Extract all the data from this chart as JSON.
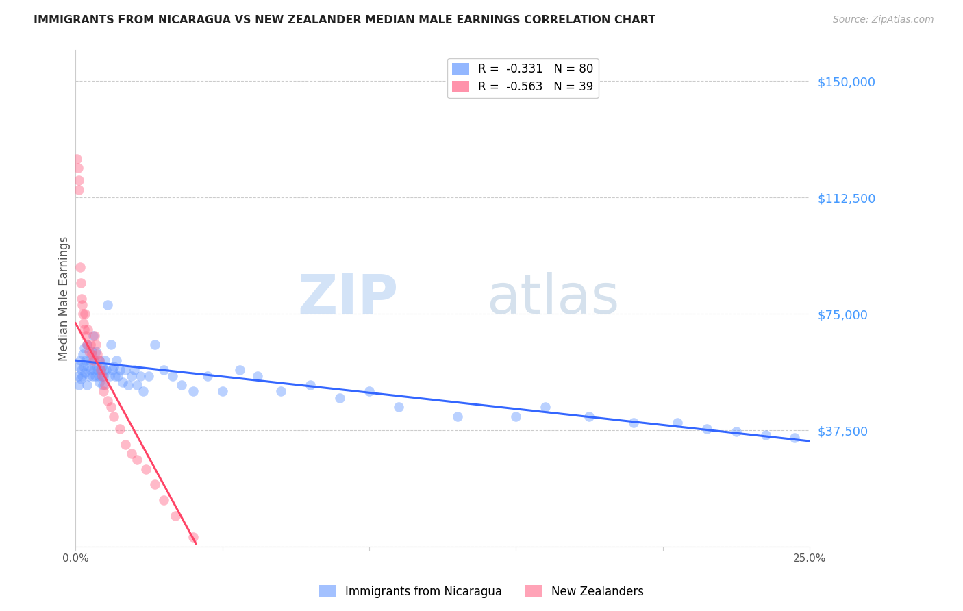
{
  "title": "IMMIGRANTS FROM NICARAGUA VS NEW ZEALANDER MEDIAN MALE EARNINGS CORRELATION CHART",
  "source": "Source: ZipAtlas.com",
  "ylabel": "Median Male Earnings",
  "y_ticks": [
    0,
    37500,
    75000,
    112500,
    150000
  ],
  "y_tick_labels": [
    "",
    "$37,500",
    "$75,000",
    "$112,500",
    "$150,000"
  ],
  "xmin": 0.0,
  "xmax": 0.25,
  "ymin": 0,
  "ymax": 160000,
  "blue_R": -0.331,
  "blue_N": 80,
  "pink_R": -0.563,
  "pink_N": 39,
  "legend_label_blue": "Immigrants from Nicaragua",
  "legend_label_pink": "New Zealanders",
  "watermark_zip": "ZIP",
  "watermark_atlas": "atlas",
  "dot_size": 110,
  "dot_alpha": 0.45,
  "blue_color": "#6699ff",
  "pink_color": "#ff6688",
  "line_blue_color": "#3366ff",
  "line_pink_color": "#ff4466",
  "blue_x": [
    0.0008,
    0.001,
    0.0012,
    0.0015,
    0.0018,
    0.002,
    0.0022,
    0.0025,
    0.0028,
    0.003,
    0.0032,
    0.0035,
    0.0038,
    0.004,
    0.0042,
    0.0045,
    0.0048,
    0.005,
    0.0055,
    0.0058,
    0.006,
    0.0062,
    0.0065,
    0.0068,
    0.007,
    0.0072,
    0.0075,
    0.0078,
    0.008,
    0.0082,
    0.0085,
    0.0088,
    0.009,
    0.0092,
    0.0095,
    0.0098,
    0.01,
    0.0105,
    0.011,
    0.0115,
    0.012,
    0.0125,
    0.013,
    0.0135,
    0.014,
    0.0145,
    0.015,
    0.016,
    0.017,
    0.018,
    0.019,
    0.02,
    0.021,
    0.022,
    0.023,
    0.025,
    0.027,
    0.03,
    0.033,
    0.036,
    0.04,
    0.045,
    0.05,
    0.056,
    0.062,
    0.07,
    0.08,
    0.09,
    0.1,
    0.11,
    0.13,
    0.15,
    0.16,
    0.175,
    0.19,
    0.205,
    0.215,
    0.225,
    0.235,
    0.245
  ],
  "blue_y": [
    55000,
    58000,
    52000,
    60000,
    54000,
    57000,
    55000,
    62000,
    58000,
    64000,
    56000,
    60000,
    52000,
    65000,
    58000,
    55000,
    60000,
    57000,
    63000,
    55000,
    68000,
    57000,
    60000,
    55000,
    63000,
    58000,
    57000,
    55000,
    60000,
    53000,
    57000,
    55000,
    58000,
    52000,
    55000,
    57000,
    60000,
    57000,
    78000,
    55000,
    65000,
    57000,
    58000,
    55000,
    60000,
    55000,
    57000,
    53000,
    57000,
    52000,
    55000,
    57000,
    52000,
    55000,
    50000,
    55000,
    65000,
    57000,
    55000,
    52000,
    50000,
    55000,
    50000,
    57000,
    55000,
    50000,
    52000,
    48000,
    50000,
    45000,
    42000,
    42000,
    45000,
    42000,
    40000,
    40000,
    38000,
    37000,
    36000,
    35000
  ],
  "pink_x": [
    0.0005,
    0.0008,
    0.001,
    0.0012,
    0.0015,
    0.0018,
    0.002,
    0.0022,
    0.0025,
    0.0028,
    0.003,
    0.0032,
    0.0035,
    0.004,
    0.0042,
    0.0045,
    0.005,
    0.0055,
    0.006,
    0.0065,
    0.007,
    0.0075,
    0.008,
    0.0085,
    0.009,
    0.0095,
    0.01,
    0.011,
    0.012,
    0.013,
    0.015,
    0.017,
    0.019,
    0.021,
    0.024,
    0.027,
    0.03,
    0.034,
    0.04
  ],
  "pink_y": [
    125000,
    122000,
    118000,
    115000,
    90000,
    85000,
    80000,
    78000,
    75000,
    72000,
    70000,
    75000,
    68000,
    65000,
    70000,
    63000,
    65000,
    62000,
    60000,
    68000,
    65000,
    62000,
    60000,
    57000,
    55000,
    50000,
    52000,
    47000,
    45000,
    42000,
    38000,
    33000,
    30000,
    28000,
    25000,
    20000,
    15000,
    10000,
    3000
  ],
  "blue_line_x0": 0.0,
  "blue_line_x1": 0.25,
  "blue_line_y0": 60000,
  "blue_line_y1": 34000,
  "pink_line_x0": 0.0,
  "pink_line_x1": 0.041,
  "pink_line_y0": 72000,
  "pink_line_y1": 1000
}
